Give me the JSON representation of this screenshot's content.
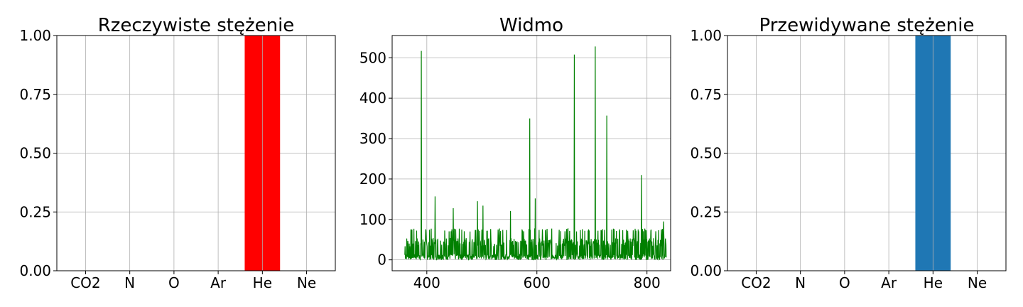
{
  "chart_data": [
    {
      "type": "bar",
      "title": "Rzeczywiste stężenie",
      "categories": [
        "CO2",
        "N",
        "O",
        "Ar",
        "He",
        "Ne"
      ],
      "values": [
        0,
        0,
        0,
        0,
        1.0,
        0
      ],
      "ylim": [
        0,
        1.0
      ],
      "yticks": [
        "0.00",
        "0.25",
        "0.50",
        "0.75",
        "1.00"
      ],
      "color": "#ff0000",
      "grid": true
    },
    {
      "type": "line",
      "title": "Widmo",
      "xlim": [
        337,
        843
      ],
      "ylim": [
        -27,
        555
      ],
      "xticks": [
        400,
        600,
        800
      ],
      "yticks": [
        0,
        100,
        200,
        300,
        400,
        500
      ],
      "color": "#008000",
      "grid": true,
      "peaks": [
        {
          "x": 390,
          "y": 517
        },
        {
          "x": 415,
          "y": 157
        },
        {
          "x": 448,
          "y": 128
        },
        {
          "x": 492,
          "y": 145
        },
        {
          "x": 502,
          "y": 134
        },
        {
          "x": 552,
          "y": 121
        },
        {
          "x": 587,
          "y": 350
        },
        {
          "x": 597,
          "y": 152
        },
        {
          "x": 668,
          "y": 508
        },
        {
          "x": 706,
          "y": 528
        },
        {
          "x": 727,
          "y": 357
        },
        {
          "x": 790,
          "y": 210
        },
        {
          "x": 830,
          "y": 95
        }
      ],
      "x_range": [
        360,
        835
      ],
      "noise_level": 60
    },
    {
      "type": "bar",
      "title": "Przewidywane stężenie",
      "categories": [
        "CO2",
        "N",
        "O",
        "Ar",
        "He",
        "Ne"
      ],
      "values": [
        0,
        0,
        0,
        0,
        1.0,
        0
      ],
      "ylim": [
        0,
        1.0
      ],
      "yticks": [
        "0.00",
        "0.25",
        "0.50",
        "0.75",
        "1.00"
      ],
      "color": "#1f77b4",
      "grid": true
    }
  ]
}
